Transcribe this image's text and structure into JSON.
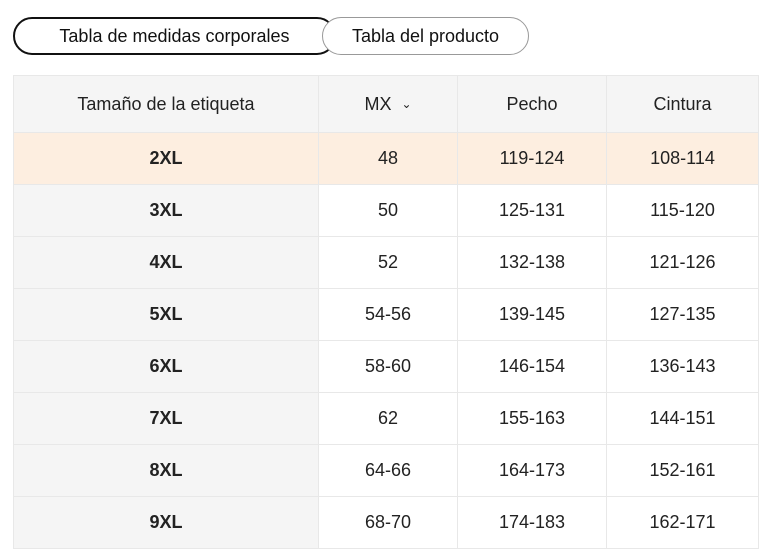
{
  "tabs": [
    {
      "label": "Tabla de medidas corporales",
      "active": true
    },
    {
      "label": "Tabla del producto",
      "active": false
    }
  ],
  "table": {
    "headers": [
      "Tamaño de la etiqueta",
      "MX",
      "Pecho",
      "Cintura"
    ],
    "unit_dropdown_icon": "chevron-down-icon",
    "highlight_color": "#fdeee0",
    "rows": [
      [
        "2XL",
        "48",
        "119-124",
        "108-114"
      ],
      [
        "3XL",
        "50",
        "125-131",
        "115-120"
      ],
      [
        "4XL",
        "52",
        "132-138",
        "121-126"
      ],
      [
        "5XL",
        "54-56",
        "139-145",
        "127-135"
      ],
      [
        "6XL",
        "58-60",
        "146-154",
        "136-143"
      ],
      [
        "7XL",
        "62",
        "155-163",
        "144-151"
      ],
      [
        "8XL",
        "64-66",
        "164-173",
        "152-161"
      ],
      [
        "9XL",
        "68-70",
        "174-183",
        "162-171"
      ]
    ]
  }
}
